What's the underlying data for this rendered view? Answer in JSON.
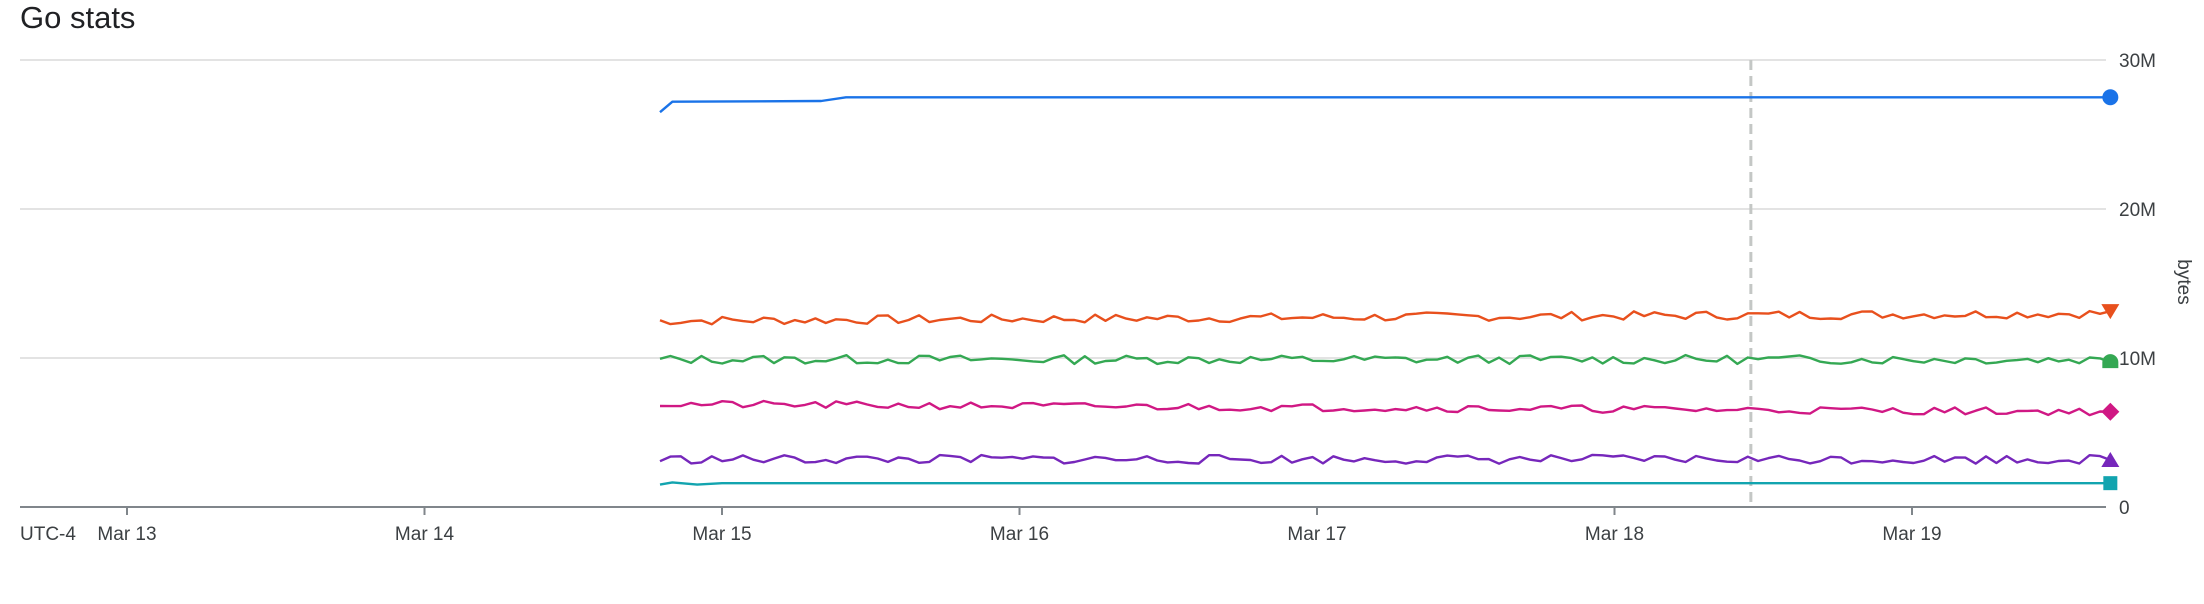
{
  "chart_data": {
    "type": "line",
    "title": "Go stats",
    "ylabel": "bytes",
    "timezone_label": "UTC-4",
    "ylim": [
      0,
      30000000
    ],
    "x_range": [
      "2024-03-12T20:00",
      "2024-03-19T16:00"
    ],
    "x_ticks": [
      "Mar 13",
      "Mar 14",
      "Mar 15",
      "Mar 16",
      "Mar 17",
      "Mar 18",
      "Mar 19"
    ],
    "y_ticks": [
      {
        "value": 0,
        "label": "0"
      },
      {
        "value": 10000000,
        "label": "10M"
      },
      {
        "value": 20000000,
        "label": "20M"
      },
      {
        "value": 30000000,
        "label": "30M"
      }
    ],
    "cursor_x": "2024-03-18T11:00",
    "grid": true,
    "series": [
      {
        "color": "#1a73e8",
        "marker": "circle",
        "points": [
          [
            "2024-03-14T19:00",
            26500000
          ],
          [
            "2024-03-14T20:00",
            27200000
          ],
          [
            "2024-03-15T08:00",
            27250000
          ],
          [
            "2024-03-15T10:00",
            27500000
          ],
          [
            "2024-03-19T16:00",
            27500000
          ]
        ]
      },
      {
        "color": "#e8501d",
        "marker": "triangle-down",
        "base": 12500000,
        "amplitude": 300000,
        "trend": 500000,
        "seed": 7
      },
      {
        "color": "#34a853",
        "marker": "half-circle",
        "base": 9900000,
        "amplitude": 300000,
        "trend": 0,
        "seed": 13
      },
      {
        "color": "#d01884",
        "marker": "diamond",
        "base": 6900000,
        "amplitude": 250000,
        "trend": -500000,
        "seed": 21
      },
      {
        "color": "#7627bb",
        "marker": "triangle-up",
        "base": 3200000,
        "amplitude": 300000,
        "trend": 0,
        "seed": 33
      },
      {
        "color": "#12a4af",
        "marker": "square",
        "points": [
          [
            "2024-03-14T19:00",
            1500000
          ],
          [
            "2024-03-14T20:00",
            1650000
          ],
          [
            "2024-03-14T22:00",
            1500000
          ],
          [
            "2024-03-15T00:00",
            1600000
          ],
          [
            "2024-03-19T16:00",
            1600000
          ]
        ]
      }
    ]
  }
}
